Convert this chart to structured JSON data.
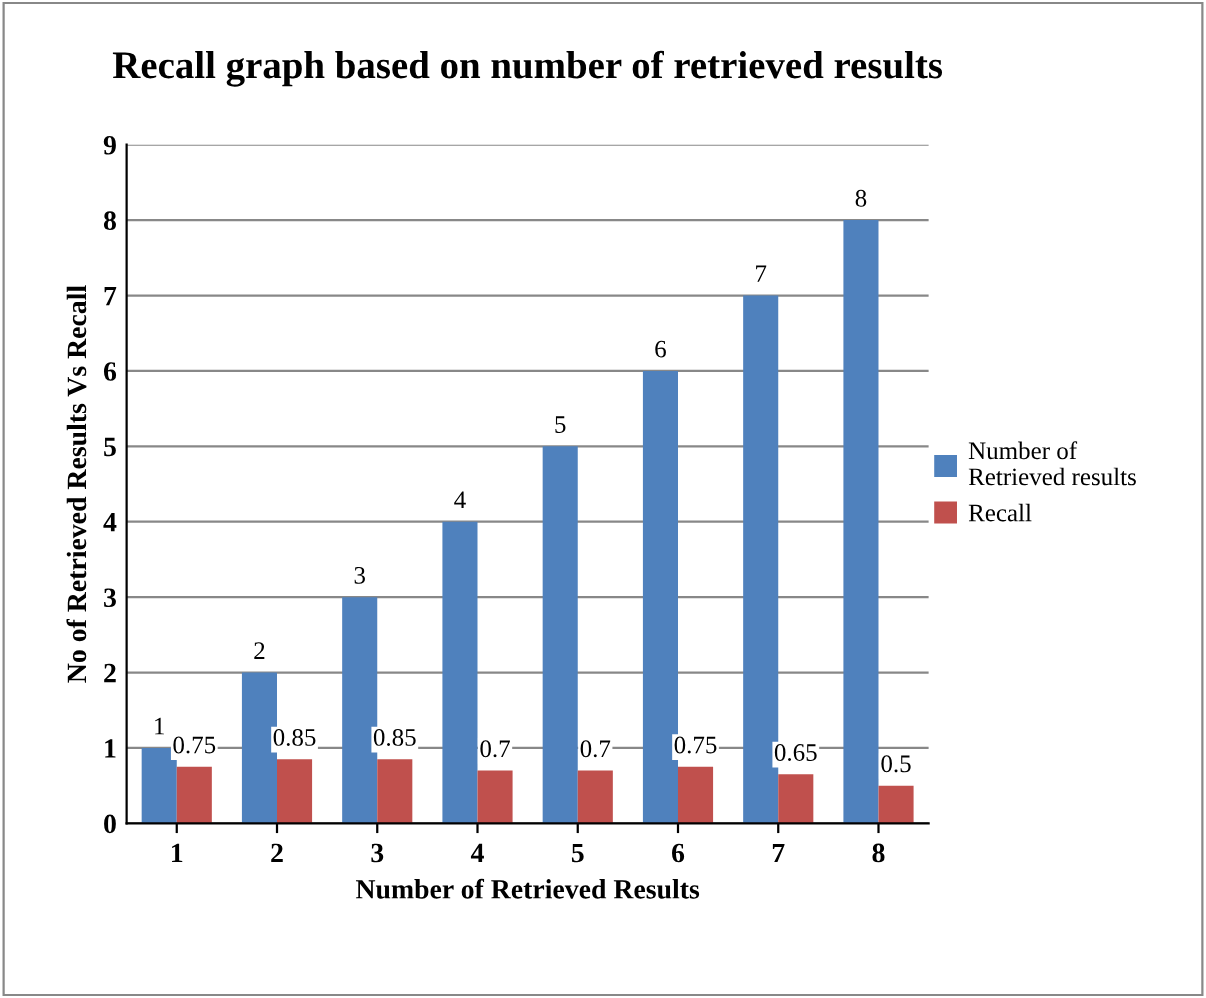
{
  "chart_data": {
    "type": "bar",
    "title": "Recall graph based on number of retrieved results",
    "xlabel": "Number of Retrieved Results",
    "ylabel": "No of Retrieved Results Vs Recall",
    "categories": [
      "1",
      "2",
      "3",
      "4",
      "5",
      "6",
      "7",
      "8"
    ],
    "series": [
      {
        "name": "Number of Retrieved results",
        "color": "#4f81bd",
        "values": [
          1,
          2,
          3,
          4,
          5,
          6,
          7,
          8
        ]
      },
      {
        "name": "Recall",
        "color": "#c0504d",
        "values": [
          0.75,
          0.85,
          0.85,
          0.7,
          0.7,
          0.75,
          0.65,
          0.5
        ]
      }
    ],
    "ylim": [
      0,
      9
    ],
    "yticks": [
      0,
      1,
      2,
      3,
      4,
      5,
      6,
      7,
      8,
      9
    ],
    "grid": "y",
    "legend": "right",
    "data_labels": true
  }
}
